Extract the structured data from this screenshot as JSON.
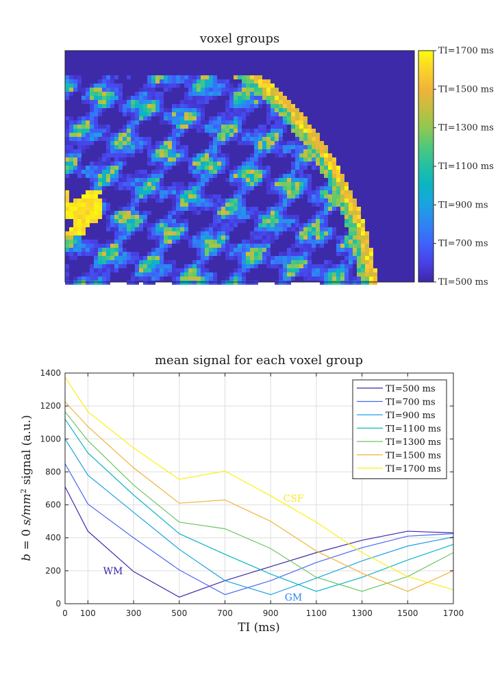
{
  "colors": {
    "background": "#3d2aa8",
    "parula": [
      "#3e26a8",
      "#4741e5",
      "#3f62fb",
      "#2e84f3",
      "#1ba2e1",
      "#0bb4c4",
      "#23bfa4",
      "#4ec87c",
      "#8fc851",
      "#c4be40",
      "#f0b437",
      "#fbd22b",
      "#f9fb0e"
    ]
  },
  "chart_data": [
    {
      "type": "heatmap",
      "title": "voxel groups",
      "colorbar": {
        "ticks": [
          "TI=500 ms",
          "TI=700 ms",
          "TI=900 ms",
          "TI=1100 ms",
          "TI=1300 ms",
          "TI=1500 ms",
          "TI=1700 ms"
        ],
        "range": [
          500,
          1700
        ]
      },
      "description_values": "brain slice map; each voxel colored by its assigned TI group (500-1700 ms)"
    },
    {
      "type": "line",
      "title": "mean signal for each voxel group",
      "xlabel": "TI (ms)",
      "ylabel": "b = 0 s/mm² signal (a.u.)",
      "xlim": [
        0,
        1700
      ],
      "ylim": [
        0,
        1400
      ],
      "xticks": [
        0,
        100,
        300,
        500,
        700,
        900,
        1100,
        1300,
        1500,
        1700
      ],
      "yticks": [
        0,
        200,
        400,
        600,
        800,
        1000,
        1200,
        1400
      ],
      "grid": true,
      "legend_position": "top-right",
      "x": [
        0,
        100,
        300,
        500,
        700,
        900,
        1100,
        1300,
        1500,
        1700
      ],
      "series": [
        {
          "name": "TI=500 ms",
          "color": "#3e26a8",
          "values": [
            710,
            440,
            195,
            40,
            140,
            225,
            310,
            385,
            440,
            430
          ]
        },
        {
          "name": "TI=700 ms",
          "color": "#4867f0",
          "values": [
            850,
            605,
            400,
            205,
            55,
            140,
            250,
            340,
            410,
            425
          ]
        },
        {
          "name": "TI=900 ms",
          "color": "#1ba2e1",
          "values": [
            1000,
            780,
            555,
            330,
            140,
            55,
            155,
            260,
            350,
            405
          ]
        },
        {
          "name": "TI=1100 ms",
          "color": "#0bb4c4",
          "values": [
            1120,
            915,
            660,
            425,
            300,
            180,
            75,
            160,
            265,
            360
          ]
        },
        {
          "name": "TI=1300 ms",
          "color": "#6cc464",
          "values": [
            1165,
            990,
            720,
            495,
            455,
            335,
            160,
            75,
            165,
            310
          ]
        },
        {
          "name": "TI=1500 ms",
          "color": "#f0b437",
          "values": [
            1225,
            1075,
            825,
            610,
            630,
            500,
            320,
            185,
            75,
            200
          ]
        },
        {
          "name": "TI=1700 ms",
          "color": "#f9f110",
          "values": [
            1375,
            1165,
            945,
            755,
            805,
            655,
            495,
            310,
            165,
            85
          ]
        }
      ],
      "annotations": [
        {
          "text": "WM",
          "x": 210,
          "y": 200,
          "color": "#3e26a8"
        },
        {
          "text": "GM",
          "x": 1000,
          "y": 40,
          "color": "#2e84f3"
        },
        {
          "text": "CSF",
          "x": 1000,
          "y": 640,
          "color": "#f9e62a"
        }
      ]
    }
  ]
}
